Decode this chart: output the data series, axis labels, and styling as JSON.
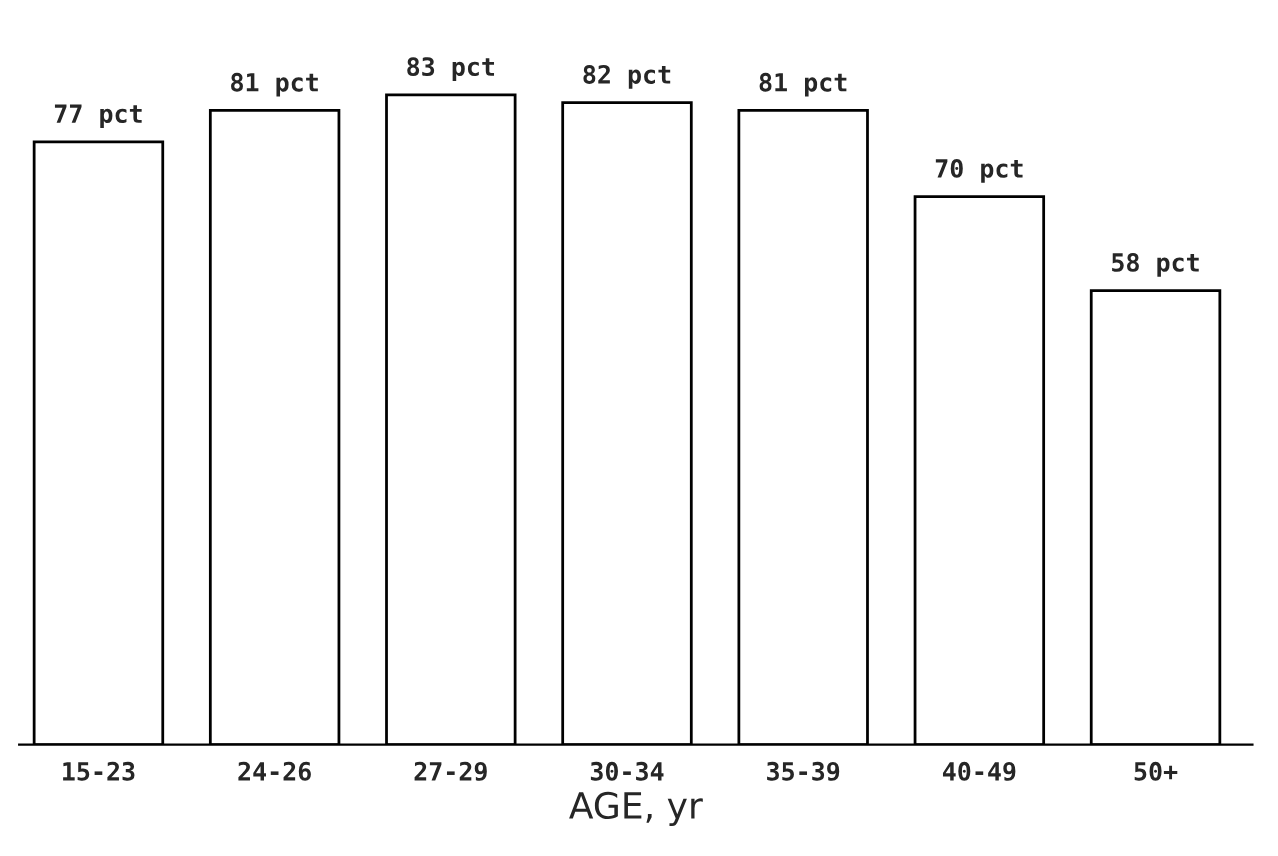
{
  "chart_data": {
    "type": "bar",
    "xlabel": "AGE, yr",
    "categories": [
      "15-23",
      "24-26",
      "27-29",
      "30-34",
      "35-39",
      "40-49",
      "50+"
    ],
    "values": [
      77,
      81,
      83,
      82,
      81,
      70,
      58
    ],
    "value_labels": [
      "77 pct",
      "81 pct",
      "83 pct",
      "82 pct",
      "81 pct",
      "70 pct",
      "58 pct"
    ],
    "color": "#ffffff",
    "grid": false,
    "legend": false
  }
}
